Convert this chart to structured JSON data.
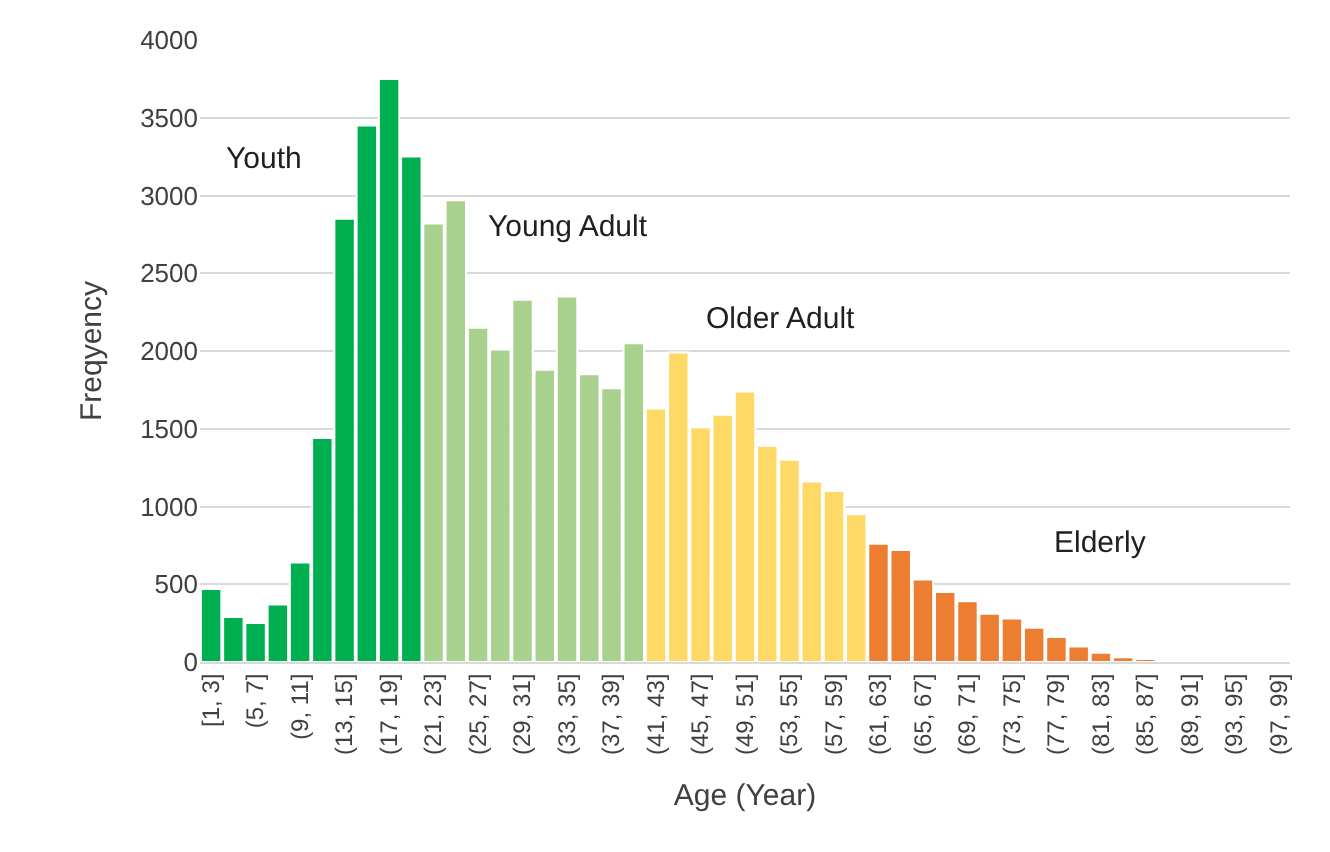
{
  "chart_data": {
    "type": "bar",
    "xlabel": "Age (Year)",
    "ylabel": "Freqyency",
    "categories": [
      "[1, 3]",
      null,
      "(5, 7]",
      null,
      "(9, 11]",
      null,
      "(13, 15]",
      null,
      "(17, 19]",
      null,
      "(21, 23]",
      null,
      "(25, 27]",
      null,
      "(29, 31]",
      null,
      "(33, 35]",
      null,
      "(37, 39]",
      null,
      "(41, 43]",
      null,
      "(45, 47]",
      null,
      "(49, 51]",
      null,
      "(53, 55]",
      null,
      "(57, 59]",
      null,
      "(61, 63]",
      null,
      "(65, 67]",
      null,
      "(69, 71]",
      null,
      "(73, 75]",
      null,
      "(77, 79]",
      null,
      "(81, 83]",
      null,
      "(85, 87]",
      null,
      "(89, 91]",
      null,
      "(93, 95]",
      null,
      "(97, 99]"
    ],
    "values": [
      470,
      290,
      250,
      370,
      640,
      1440,
      2850,
      3450,
      3750,
      3250,
      2820,
      2970,
      2150,
      2010,
      2330,
      1880,
      2350,
      1850,
      1760,
      2050,
      1630,
      1990,
      1510,
      1590,
      1740,
      1390,
      1300,
      1160,
      1100,
      950,
      760,
      720,
      530,
      450,
      390,
      310,
      280,
      220,
      160,
      100,
      60,
      30,
      20,
      null,
      null,
      null,
      null,
      null,
      null
    ],
    "colors": [
      "#00b050",
      "#00b050",
      "#00b050",
      "#00b050",
      "#00b050",
      "#00b050",
      "#00b050",
      "#00b050",
      "#00b050",
      "#00b050",
      "#a9d18e",
      "#a9d18e",
      "#a9d18e",
      "#a9d18e",
      "#a9d18e",
      "#a9d18e",
      "#a9d18e",
      "#a9d18e",
      "#a9d18e",
      "#a9d18e",
      "#ffd966",
      "#ffd966",
      "#ffd966",
      "#ffd966",
      "#ffd966",
      "#ffd966",
      "#ffd966",
      "#ffd966",
      "#ffd966",
      "#ffd966",
      "#ed7d31",
      "#ed7d31",
      "#ed7d31",
      "#ed7d31",
      "#ed7d31",
      "#ed7d31",
      "#ed7d31",
      "#ed7d31",
      "#ed7d31",
      "#ed7d31",
      "#ed7d31",
      "#ed7d31",
      "#ed7d31",
      "#ed7d31",
      "#ed7d31",
      "#ed7d31",
      "#ed7d31",
      "#ed7d31",
      "#ed7d31"
    ],
    "ylim": [
      0,
      4000
    ],
    "yticks": [
      0,
      500,
      1000,
      1500,
      2000,
      2500,
      3000,
      3500,
      4000
    ],
    "grid": "y",
    "annotations": [
      "Youth",
      "Young Adult",
      "Older Adult",
      "Elderly"
    ]
  }
}
